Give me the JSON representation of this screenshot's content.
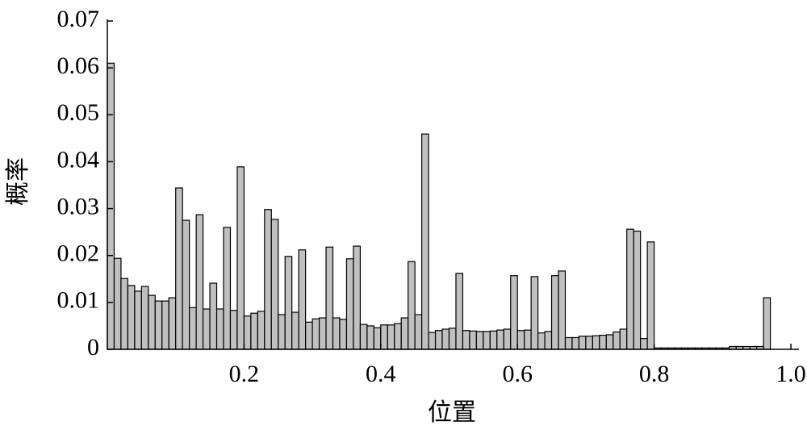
{
  "chart_data": {
    "type": "histogram",
    "xlabel": "位置",
    "ylabel": "概率",
    "bins": [
      0,
      0.01,
      0.02,
      0.03,
      0.04,
      0.05,
      0.06,
      0.07,
      0.08,
      0.09,
      0.1,
      0.11,
      0.12,
      0.13,
      0.14,
      0.15,
      0.16,
      0.17,
      0.18,
      0.19,
      0.2,
      0.21,
      0.22,
      0.23,
      0.24,
      0.25,
      0.26,
      0.27,
      0.28,
      0.29,
      0.3,
      0.31,
      0.32,
      0.33,
      0.34,
      0.35,
      0.36,
      0.37,
      0.38,
      0.39,
      0.4,
      0.41,
      0.42,
      0.43,
      0.44,
      0.45,
      0.46,
      0.47,
      0.48,
      0.49,
      0.5,
      0.51,
      0.52,
      0.53,
      0.54,
      0.55,
      0.56,
      0.57,
      0.58,
      0.59,
      0.6,
      0.61,
      0.62,
      0.63,
      0.64,
      0.65,
      0.66,
      0.67,
      0.68,
      0.69,
      0.7,
      0.71,
      0.72,
      0.73,
      0.74,
      0.75,
      0.76,
      0.77,
      0.78,
      0.79,
      0.8,
      0.81,
      0.82,
      0.83,
      0.84,
      0.85,
      0.86,
      0.87,
      0.88,
      0.89,
      0.9,
      0.91,
      0.92,
      0.93,
      0.94,
      0.95,
      0.96,
      0.97
    ],
    "values": [
      0.061,
      0.0194,
      0.0151,
      0.0136,
      0.0124,
      0.0134,
      0.0115,
      0.0103,
      0.0103,
      0.011,
      0.0344,
      0.0275,
      0.0089,
      0.0287,
      0.0086,
      0.0141,
      0.0086,
      0.026,
      0.0083,
      0.0389,
      0.0071,
      0.0077,
      0.0081,
      0.0298,
      0.0277,
      0.0074,
      0.0198,
      0.0079,
      0.0212,
      0.0058,
      0.0065,
      0.0067,
      0.0218,
      0.0067,
      0.0064,
      0.0193,
      0.022,
      0.0053,
      0.005,
      0.0046,
      0.0052,
      0.0052,
      0.0055,
      0.0067,
      0.0187,
      0.0074,
      0.0459,
      0.0036,
      0.004,
      0.0043,
      0.0045,
      0.0162,
      0.004,
      0.0039,
      0.0038,
      0.0038,
      0.0039,
      0.0041,
      0.0043,
      0.0157,
      0.004,
      0.0041,
      0.0155,
      0.0035,
      0.0038,
      0.0157,
      0.0167,
      0.0025,
      0.0025,
      0.0028,
      0.0028,
      0.0029,
      0.003,
      0.0031,
      0.0037,
      0.0043,
      0.0256,
      0.0252,
      0.0023,
      0.0229,
      0.0003,
      0.0003,
      0.0003,
      0.0003,
      0.0003,
      0.0003,
      0.0003,
      0.0003,
      0.0003,
      0.0003,
      0.0003,
      0.0006,
      0.0006,
      0.0006,
      0.0006,
      0.0006,
      0.011
    ],
    "color": "#c0c0c0",
    "xlim": [
      0,
      1
    ],
    "xticks": [
      0.2,
      0.4,
      0.6,
      0.8,
      {
        "value": 1,
        "label": "1.0"
      }
    ],
    "ylim": [
      0,
      0.07
    ],
    "yticks": [
      0,
      0.01,
      0.02,
      0.03,
      0.04,
      0.05,
      0.06,
      0.07
    ]
  }
}
